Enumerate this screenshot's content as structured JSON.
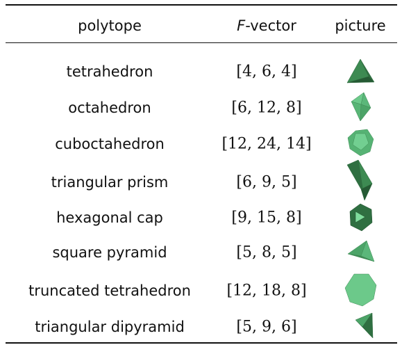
{
  "table": {
    "header": [
      "polytope",
      "F-vector",
      "picture"
    ],
    "rows": [
      [
        "tetrahedron",
        "[4, 6, 4]"
      ],
      [
        "octahedron",
        "[6, 12, 8]"
      ],
      [
        "cuboctahedron",
        "[12, 24, 14]"
      ],
      [
        "triangular prism",
        "[6, 9, 5]"
      ],
      [
        "hexagonal cap",
        "[9, 15, 8]"
      ],
      [
        "square pyramid",
        "[5, 8, 5]"
      ],
      [
        "truncated tetrahedron",
        "[12, 18, 8]"
      ],
      [
        "triangular dipyramid",
        "[5, 9, 6]"
      ]
    ]
  }
}
